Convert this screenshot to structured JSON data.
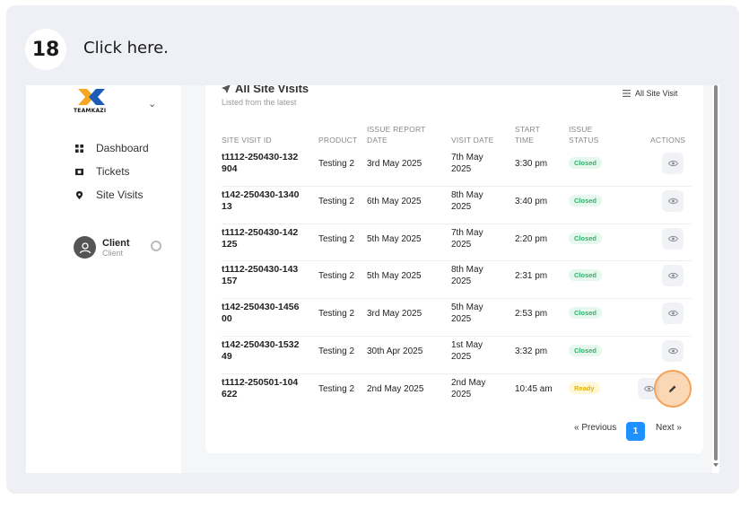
{
  "step": {
    "number": "18",
    "instruction": "Click here."
  },
  "brand": {
    "wordmark": "TEAMKAZI"
  },
  "sidebar": {
    "items": [
      {
        "label": "Dashboard",
        "icon": "grid-icon"
      },
      {
        "label": "Tickets",
        "icon": "ticket-icon"
      },
      {
        "label": "Site Visits",
        "icon": "location-pin-icon"
      }
    ],
    "user": {
      "name": "Client",
      "role": "Client"
    }
  },
  "panel": {
    "title": "All Site Visits",
    "subtitle": "Listed from the latest",
    "filter_label": "All Site Visit"
  },
  "table": {
    "headers": {
      "id": "SITE VISIT ID",
      "product": "PRODUCT",
      "issue_report_date": "ISSUE REPORT DATE",
      "visit_date": "VISIT DATE",
      "start_time": "START TIME",
      "issue_status": "ISSUE STATUS",
      "actions": "ACTIONS"
    },
    "rows": [
      {
        "id": "t1112-250430-132904",
        "product": "Testing 2",
        "report": "3rd May 2025",
        "visit": "7th May 2025",
        "time": "3:30 pm",
        "status": "Closed"
      },
      {
        "id": "t142-250430-134013",
        "product": "Testing 2",
        "report": "6th May 2025",
        "visit": "8th May 2025",
        "time": "3:40 pm",
        "status": "Closed"
      },
      {
        "id": "t1112-250430-142125",
        "product": "Testing 2",
        "report": "5th May 2025",
        "visit": "7th May 2025",
        "time": "2:20 pm",
        "status": "Closed"
      },
      {
        "id": "t1112-250430-143157",
        "product": "Testing 2",
        "report": "5th May 2025",
        "visit": "8th May 2025",
        "time": "2:31 pm",
        "status": "Closed"
      },
      {
        "id": "t142-250430-145600",
        "product": "Testing 2",
        "report": "3rd May 2025",
        "visit": "5th May 2025",
        "time": "2:53 pm",
        "status": "Closed"
      },
      {
        "id": "t142-250430-153249",
        "product": "Testing 2",
        "report": "30th Apr 2025",
        "visit": "1st May 2025",
        "time": "3:32 pm",
        "status": "Closed"
      },
      {
        "id": "t1112-250501-104622",
        "product": "Testing 2",
        "report": "2nd May 2025",
        "visit": "2nd May 2025",
        "time": "10:45 am",
        "status": "Ready"
      }
    ]
  },
  "pagination": {
    "previous": "« Previous",
    "current": "1",
    "next": "Next »"
  },
  "colors": {
    "accent": "#1e90ff",
    "closed": "#2fb36b",
    "ready": "#e3b400",
    "highlight": "#f3a35a"
  }
}
